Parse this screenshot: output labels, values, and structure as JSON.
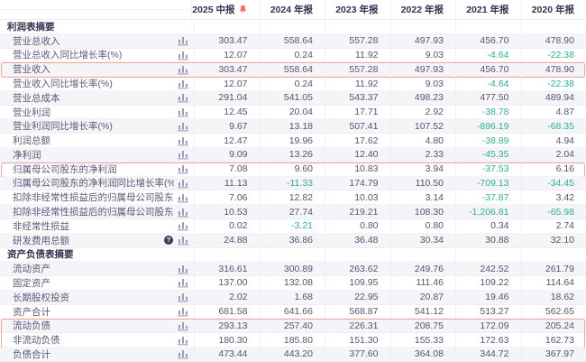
{
  "table": {
    "columns": [
      {
        "label": "2025 中报",
        "alert": true
      },
      {
        "label": "2024 年报",
        "alert": false
      },
      {
        "label": "2023 年报",
        "alert": false
      },
      {
        "label": "2022 年报",
        "alert": false
      },
      {
        "label": "2021 年报",
        "alert": false
      },
      {
        "label": "2020 年报",
        "alert": false
      }
    ],
    "sections": [
      {
        "title": "利润表摘要",
        "rows": [
          {
            "label": "营业总收入",
            "values": [
              "303.47",
              "558.64",
              "557.28",
              "497.93",
              "456.70",
              "478.90"
            ]
          },
          {
            "label": "营业总收入同比增长率(%)",
            "values": [
              "12.07",
              "0.24",
              "11.92",
              "9.03",
              "-4.64",
              "-22.38"
            ]
          },
          {
            "label": "营业收入",
            "highlight": "full",
            "values": [
              "303.47",
              "558.64",
              "557.28",
              "497.93",
              "456.70",
              "478.90"
            ]
          },
          {
            "label": "营业收入同比增长率(%)",
            "values": [
              "12.07",
              "0.24",
              "11.92",
              "9.03",
              "-4.64",
              "-22.38"
            ]
          },
          {
            "label": "营业总成本",
            "values": [
              "291.04",
              "541.05",
              "543.37",
              "498.23",
              "477.50",
              "489.94"
            ]
          },
          {
            "label": "营业利润",
            "values": [
              "12.45",
              "20.04",
              "17.71",
              "2.92",
              "-38.78",
              "4.87"
            ]
          },
          {
            "label": "营业利润同比增长率(%)",
            "values": [
              "9.67",
              "13.18",
              "507.41",
              "107.52",
              "-896.19",
              "-68.35"
            ]
          },
          {
            "label": "利润总额",
            "values": [
              "12.47",
              "19.96",
              "17.62",
              "4.80",
              "-38.89",
              "4.94"
            ]
          },
          {
            "label": "净利润",
            "values": [
              "9.09",
              "13.26",
              "12.40",
              "2.33",
              "-45.35",
              "2.04"
            ]
          },
          {
            "label": "归属母公司股东的净利润",
            "highlight": "full",
            "values": [
              "7.08",
              "9.60",
              "10.83",
              "3.94",
              "-37.53",
              "6.16"
            ]
          },
          {
            "label": "归属母公司股东的净利润同比增长率(%)",
            "values": [
              "11.13",
              "-11.33",
              "174.79",
              "110.50",
              "-709.13",
              "-34.45"
            ]
          },
          {
            "label": "扣除非经常性损益后的归属母公司股东净利润",
            "values": [
              "7.06",
              "12.82",
              "10.03",
              "3.14",
              "-37.87",
              "3.42"
            ]
          },
          {
            "label": "扣除非经常性损益后的归属母公司股东净利润同比增...",
            "values": [
              "10.53",
              "27.74",
              "219.21",
              "108.30",
              "-1,206.81",
              "-65.98"
            ]
          },
          {
            "label": "非经常性损益",
            "values": [
              "0.02",
              "-3.21",
              "0.80",
              "0.80",
              "0.34",
              "2.74"
            ]
          },
          {
            "label": "研发费用总额",
            "help": true,
            "values": [
              "24.88",
              "36.86",
              "36.48",
              "30.34",
              "30.88",
              "32.10"
            ]
          }
        ]
      },
      {
        "title": "资产负债表摘要",
        "rows": [
          {
            "label": "流动资产",
            "values": [
              "316.61",
              "300.89",
              "263.62",
              "249.76",
              "242.52",
              "261.79"
            ]
          },
          {
            "label": "固定资产",
            "values": [
              "137.00",
              "132.08",
              "109.95",
              "111.46",
              "109.22",
              "114.64"
            ]
          },
          {
            "label": "长期股权投资",
            "values": [
              "2.02",
              "1.68",
              "22.95",
              "20.87",
              "19.46",
              "18.62"
            ]
          },
          {
            "label": "资产合计",
            "values": [
              "681.58",
              "641.66",
              "568.87",
              "541.12",
              "513.27",
              "562.65"
            ]
          },
          {
            "label": "流动负债",
            "highlight": "group-start",
            "values": [
              "293.13",
              "257.40",
              "226.31",
              "208.75",
              "172.09",
              "205.24"
            ]
          },
          {
            "label": "非流动负债",
            "highlight": "group-end",
            "values": [
              "180.30",
              "185.80",
              "151.30",
              "155.33",
              "172.63",
              "162.73"
            ]
          },
          {
            "label": "负债合计",
            "values": [
              "473.44",
              "443.20",
              "377.60",
              "364.08",
              "344.72",
              "367.97"
            ]
          }
        ]
      }
    ]
  },
  "icons": {
    "bell": "alert-bell-icon",
    "chart": "bar-chart-icon",
    "help": "help-icon"
  },
  "colors": {
    "highlight_border": "#f0a7a1",
    "negative_value": "#30b08a",
    "alert_bell": "#f56c6c",
    "chart_icon": "#9c9cba",
    "row_alt_bg": "#f4f4f9",
    "header_text": "#32324e",
    "label_text": "#5a5a78",
    "value_text": "#55556b"
  }
}
